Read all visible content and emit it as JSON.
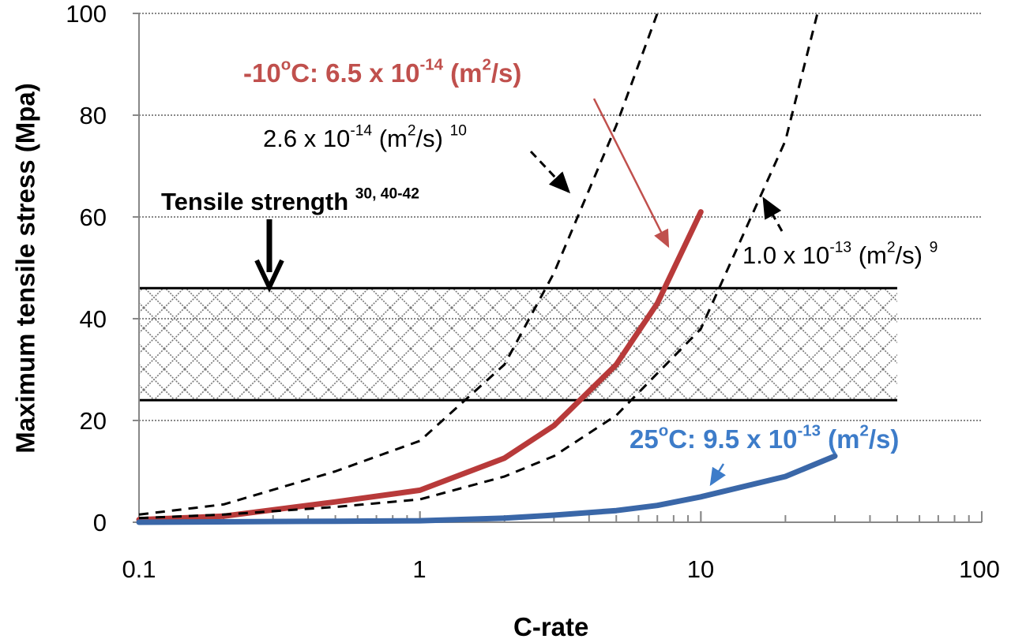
{
  "chart_data": {
    "type": "line",
    "title": "",
    "xlabel": "C-rate",
    "ylabel": "Maximum tensile stress (Mpa)",
    "xscale": "log",
    "xlim": [
      0.1,
      100
    ],
    "ylim": [
      0,
      100
    ],
    "grid": "horizontal dotted",
    "xticks": [
      "0.1",
      "1",
      "10",
      "100"
    ],
    "yticks": [
      "0",
      "20",
      "40",
      "60",
      "80",
      "100"
    ],
    "band": {
      "name": "Tensile strength",
      "y_range": [
        24,
        46
      ],
      "x_range": [
        0.1,
        50
      ],
      "color": "#000000"
    },
    "series": [
      {
        "name": "-10°C: 6.5 x 10^-14 (m2/s)",
        "style": "solid",
        "color": "#b83a3a",
        "x": [
          0.1,
          0.2,
          0.5,
          1,
          2,
          3,
          5,
          7,
          10
        ],
        "y": [
          0.5,
          1.2,
          4,
          6.3,
          12.6,
          19,
          31,
          43,
          61
        ]
      },
      {
        "name": "25°C: 9.5 x 10^-13 (m2/s)",
        "style": "solid",
        "color": "#3a67a8",
        "x": [
          0.1,
          0.5,
          1,
          2,
          3,
          5,
          7,
          10,
          20,
          30
        ],
        "y": [
          0,
          0.2,
          0.3,
          0.8,
          1.4,
          2.3,
          3.3,
          5,
          9,
          13
        ]
      },
      {
        "name": "2.6 x 10^-14 (m2/s)",
        "style": "dashed",
        "color": "#000000",
        "x": [
          0.1,
          0.2,
          0.5,
          1,
          2,
          3,
          5,
          7
        ],
        "y": [
          1.5,
          3.5,
          10,
          16,
          31,
          49,
          78,
          100
        ]
      },
      {
        "name": "1.0 x 10^-13 (m2/s)",
        "style": "dashed",
        "color": "#000000",
        "x": [
          0.1,
          0.2,
          0.5,
          1,
          2,
          3,
          5,
          10,
          20,
          26
        ],
        "y": [
          0.8,
          1.5,
          3,
          4.5,
          9,
          13,
          21,
          38,
          75,
          100
        ]
      }
    ],
    "annotations": {
      "red": [
        {
          "t": "-10"
        },
        {
          "t": "o",
          "sup": true
        },
        {
          "t": "C: 6.5 x 10"
        },
        {
          "t": "-14",
          "sup": true
        },
        {
          "t": " (m"
        },
        {
          "t": "2",
          "sup": true
        },
        {
          "t": "/s)"
        }
      ],
      "dash1": [
        {
          "t": "2.6 x 10"
        },
        {
          "t": "-14",
          "sup": true
        },
        {
          "t": " (m"
        },
        {
          "t": "2",
          "sup": true
        },
        {
          "t": "/s) "
        },
        {
          "t": "10",
          "sup": true
        }
      ],
      "tensile": [
        {
          "t": "Tensile strength "
        },
        {
          "t": "30, 40-42",
          "sup": true
        }
      ],
      "dash2": [
        {
          "t": "1.0 x 10"
        },
        {
          "t": "-13",
          "sup": true
        },
        {
          "t": " (m"
        },
        {
          "t": "2",
          "sup": true
        },
        {
          "t": "/s) "
        },
        {
          "t": "9",
          "sup": true
        }
      ],
      "blue": [
        {
          "t": "25"
        },
        {
          "t": "o",
          "sup": true
        },
        {
          "t": "C: 9.5 x 10"
        },
        {
          "t": "-13",
          "sup": true
        },
        {
          "t": " (m"
        },
        {
          "t": "2",
          "sup": true
        },
        {
          "t": "/s)"
        }
      ]
    },
    "colors": {
      "red": "#b83a3a",
      "blue": "#3d7cc9",
      "blue_line": "#3a67a8",
      "hatch": "#777777"
    }
  }
}
